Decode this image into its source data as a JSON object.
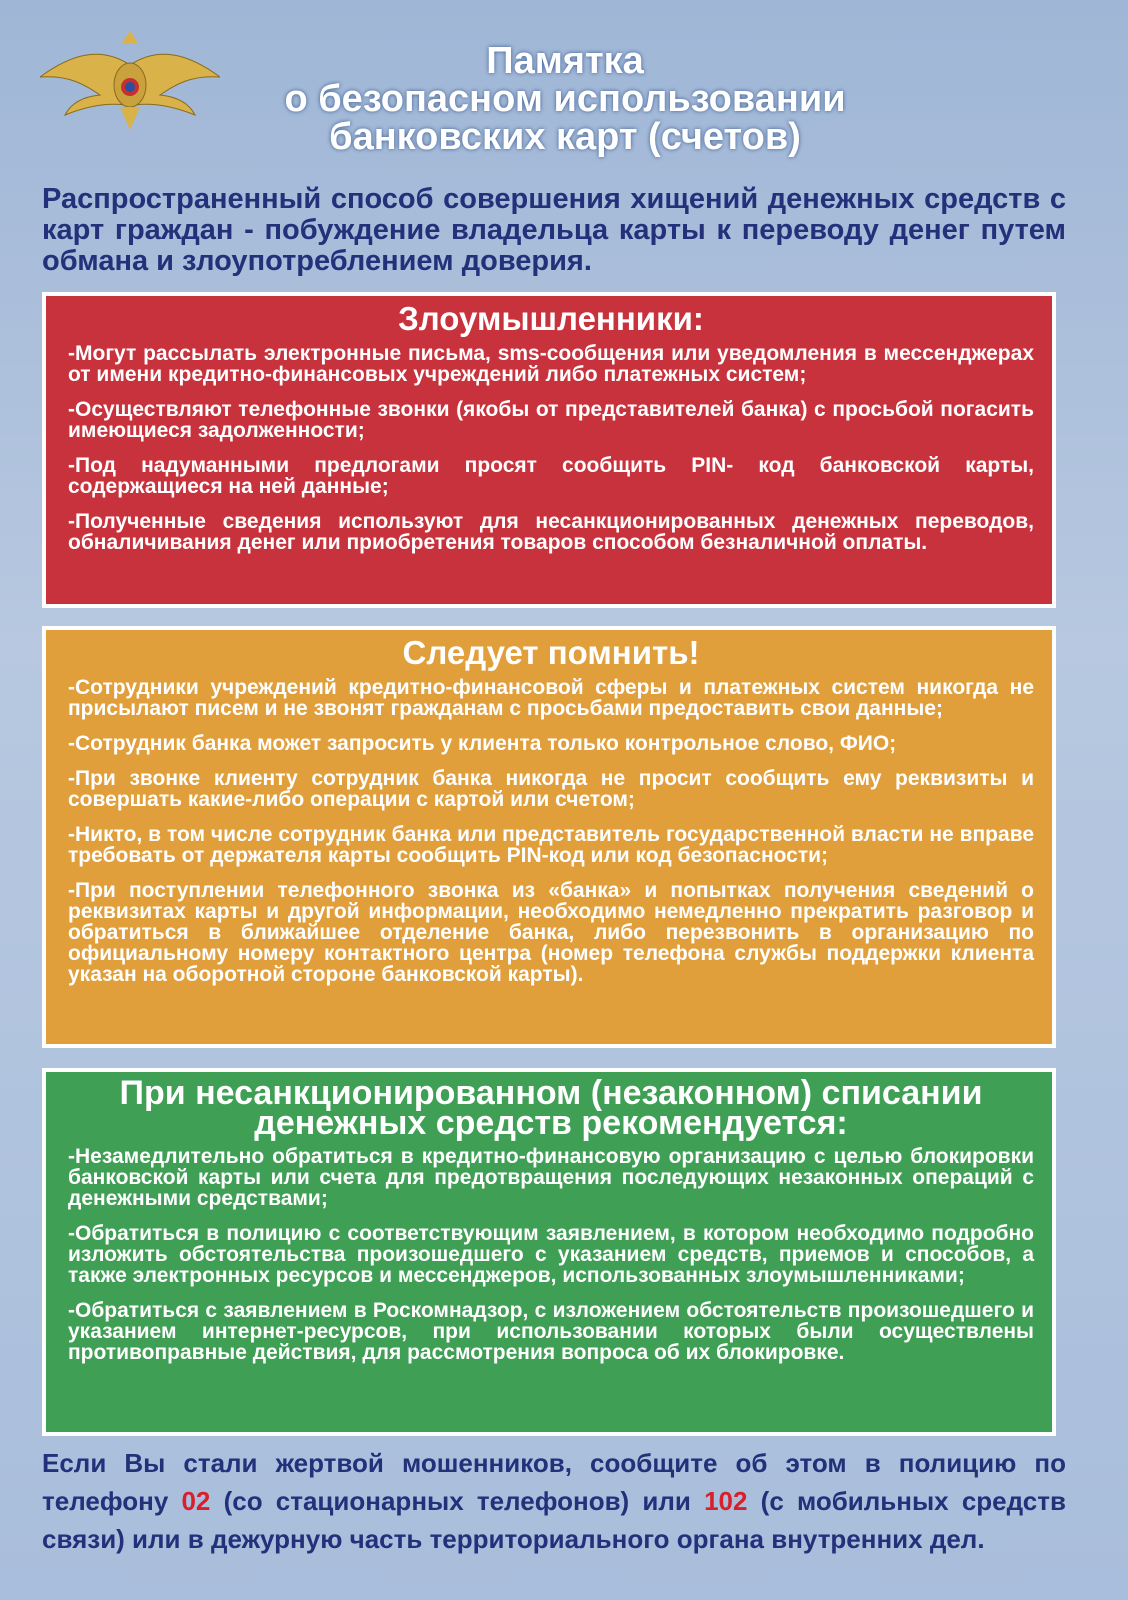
{
  "header": {
    "title_lines": [
      "Памятка",
      "о безопасном использовании",
      "банковских карт (счетов)"
    ]
  },
  "intro": "Распространенный способ совершения хищений денежных средств с карт граждан - побуждение владельца карты к переводу денег путем обмана и злоупотреблением доверия.",
  "sections": [
    {
      "title": "Злоумышленники:",
      "items": [
        "-Могут рассылать электронные письма, sms-сообщения или уведомления в мессенджерах от имени кредитно-финансовых учреждений либо платежных систем;",
        "-Осуществляют телефонные звонки (якобы от представителей банка) с просьбой погасить имеющиеся задолженности;",
        "-Под надуманными предлогами просят сообщить PIN- код банковской карты, содержащиеся на ней данные;",
        "-Полученные сведения используют для несанкционированных денежных переводов, обналичивания денег или приобретения товаров способом безналичной оплаты."
      ]
    },
    {
      "title": "Следует помнить!",
      "items": [
        "-Сотрудники учреждений кредитно-финансовой сферы и платежных систем никогда не присылают писем и не звонят гражданам с просьбами предоставить свои данные;",
        "-Сотрудник банка может запросить у клиента только контрольное слово, ФИО;",
        "-При звонке клиенту сотрудник банка никогда не просит сообщить ему реквизиты и совершать какие-либо операции с картой или счетом;",
        "-Никто, в том числе сотрудник банка или представитель государственной власти не вправе требовать от держателя карты сообщить PIN-код или код безопасности;",
        "-При поступлении телефонного звонка из «банка» и попытках получения сведений о реквизитах карты и другой информации, необходимо немедленно прекратить разговор и обратиться в ближайшее отделение банка, либо перезвонить в организацию по официальному номеру контактного центра (номер телефона службы поддержки клиента указан на оборотной стороне банковской карты)."
      ]
    },
    {
      "title": "При несанкционированном (незаконном) списании денежных средств рекомендуется:",
      "items": [
        "-Незамедлительно обратиться в кредитно-финансовую организацию с целью блокировки банковской карты или счета для предотвращения последующих незаконных операций с денежными средствами;",
        "-Обратиться в полицию с соответствующим заявлением, в котором необходимо подробно изложить обстоятельства произошедшего с указанием средств, приемов и способов, а также электронных ресурсов и мессенджеров, использованных злоумышленниками;",
        "-Обратиться с заявлением в Роскомнадзор, с изложением обстоятельств произошедшего и указанием интернет-ресурсов, при использовании которых были осуществлены противоправные действия, для рассмотрения вопроса об их блокировке."
      ]
    }
  ],
  "footer": {
    "parts": [
      "Если Вы стали жертвой мошенников, сообщите об этом в полицию по телефону ",
      "02",
      " (со стационарных телефонов) или ",
      "102",
      " (с мобильных средств связи) или в дежурную часть территориального органа внутренних дел."
    ]
  }
}
